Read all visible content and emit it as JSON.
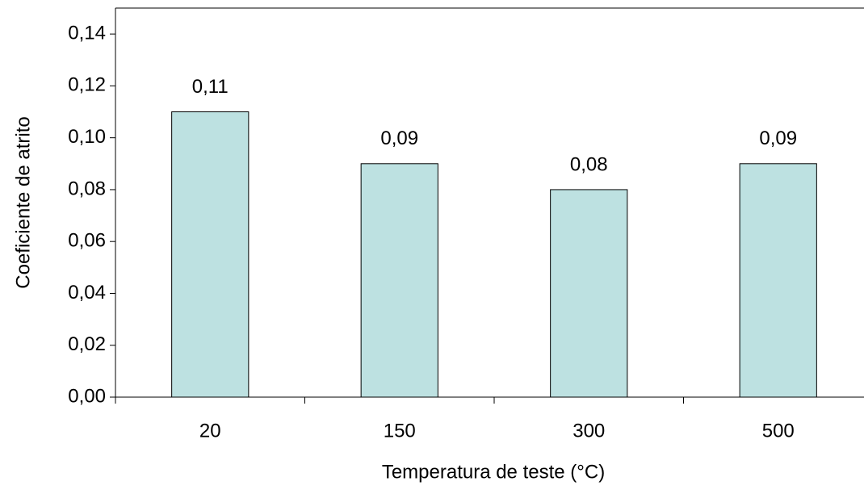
{
  "chart_data": {
    "type": "bar",
    "x_label": "Temperatura de teste (°C)",
    "y_label": "Coeficiente de atrito",
    "categories": [
      "20",
      "150",
      "300",
      "500"
    ],
    "values": [
      0.11,
      0.09,
      0.08,
      0.09
    ],
    "value_labels": [
      "0,11",
      "0,09",
      "0,08",
      "0,09"
    ],
    "color": "#bde1e1",
    "ylim": [
      0,
      0.15
    ],
    "yticks": [
      {
        "value": 0,
        "label": "0,00"
      },
      {
        "value": 0.02,
        "label": "0,02"
      },
      {
        "value": 0.04,
        "label": "0,04"
      },
      {
        "value": 0.06,
        "label": "0,06"
      },
      {
        "value": 0.08,
        "label": "0,08"
      },
      {
        "value": 0.1,
        "label": "0,10"
      },
      {
        "value": 0.12,
        "label": "0,12"
      },
      {
        "value": 0.14,
        "label": "0,14"
      }
    ],
    "grid": false
  }
}
